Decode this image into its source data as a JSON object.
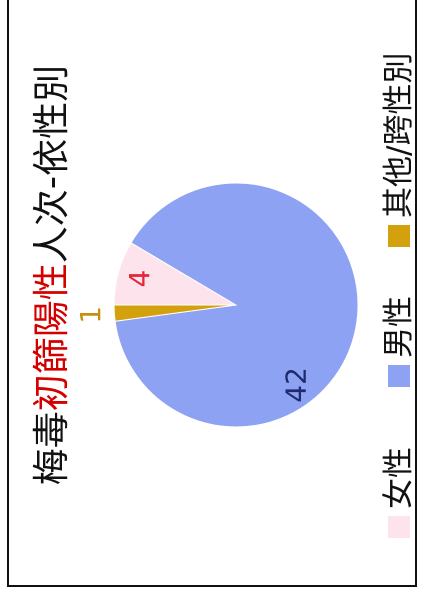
{
  "chart_data": {
    "type": "pie",
    "title": "梅毒初篩陽性人次-依性別",
    "title_highlight": "初篩陽性",
    "title_color": "#111111",
    "title_highlight_color": "#d40000",
    "categories": [
      "女性",
      "男性",
      "其他/跨性別"
    ],
    "values": [
      4,
      42,
      1
    ],
    "colors": [
      "#fde3ec",
      "#8ea2f3",
      "#d4a10e"
    ],
    "label_colors": [
      "#e3263a",
      "#1e2c6e",
      "#c6900c"
    ],
    "legend_position": "bottom"
  }
}
